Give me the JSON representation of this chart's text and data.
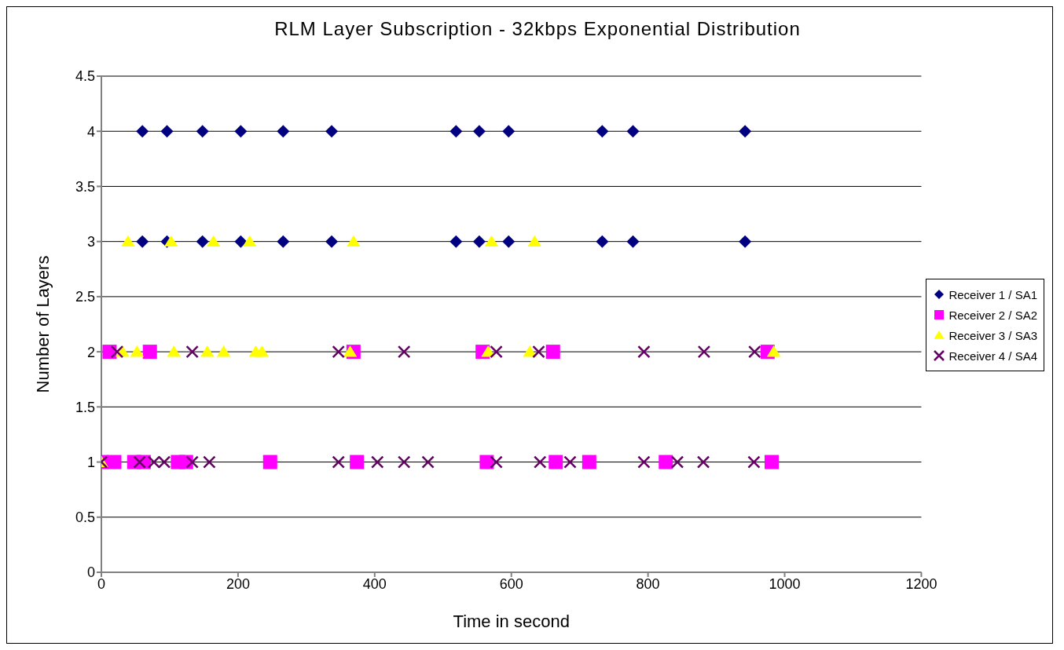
{
  "chart_data": {
    "type": "scatter",
    "title": "RLM Layer Subscription - 32kbps Exponential Distribution",
    "xlabel": "Time in second",
    "ylabel": "Number of Layers",
    "xlim": [
      0,
      1200
    ],
    "xticks": [
      0,
      200,
      400,
      600,
      800,
      1000,
      1200
    ],
    "ylim": [
      0,
      4.5
    ],
    "yticks": [
      0,
      0.5,
      1,
      1.5,
      2,
      2.5,
      3,
      3.5,
      4,
      4.5
    ],
    "grid": "y",
    "legend": "right",
    "series": [
      {
        "name": "Receiver 1 / SA1",
        "color": "#000080",
        "marker": "diamond",
        "x": [
          60,
          96,
          148,
          204,
          266,
          337,
          519,
          553,
          596,
          733,
          778,
          942,
          60,
          96,
          148,
          204,
          266,
          337,
          519,
          553,
          596,
          733,
          778,
          942
        ],
        "values": [
          4,
          4,
          4,
          4,
          4,
          4,
          4,
          4,
          4,
          4,
          4,
          4,
          3,
          3,
          3,
          3,
          3,
          3,
          3,
          3,
          3,
          3,
          3,
          3
        ]
      },
      {
        "name": "Receiver 2 / SA2",
        "color": "#ff00ff",
        "marker": "square",
        "x": [
          12,
          71,
          369,
          558,
          661,
          975,
          0,
          19,
          48,
          62,
          112,
          124,
          247,
          374,
          564,
          665,
          714,
          826,
          981
        ],
        "values": [
          2,
          2,
          2,
          2,
          2,
          2,
          1,
          1,
          1,
          1,
          1,
          1,
          1,
          1,
          1,
          1,
          1,
          1,
          1
        ]
      },
      {
        "name": "Receiver 3 / SA3",
        "color": "#ffff00",
        "marker": "triangle",
        "x": [
          39,
          102,
          164,
          217,
          369,
          571,
          634,
          31,
          52,
          106,
          155,
          179,
          226,
          235,
          364,
          566,
          627,
          984,
          0
        ],
        "values": [
          3,
          3,
          3,
          3,
          3,
          3,
          3,
          2,
          2,
          2,
          2,
          2,
          2,
          2,
          2,
          2,
          2,
          2,
          1
        ]
      },
      {
        "name": "Receiver 4 / SA4",
        "color": "#660066",
        "marker": "cross",
        "x": [
          23,
          133,
          347,
          443,
          578,
          640,
          794,
          882,
          956,
          0,
          56,
          77,
          92,
          133,
          158,
          347,
          404,
          443,
          478,
          578,
          642,
          686,
          794,
          843,
          881,
          955
        ],
        "values": [
          2,
          2,
          2,
          2,
          2,
          2,
          2,
          2,
          2,
          1,
          1,
          1,
          1,
          1,
          1,
          1,
          1,
          1,
          1,
          1,
          1,
          1,
          1,
          1,
          1,
          1
        ]
      }
    ]
  }
}
